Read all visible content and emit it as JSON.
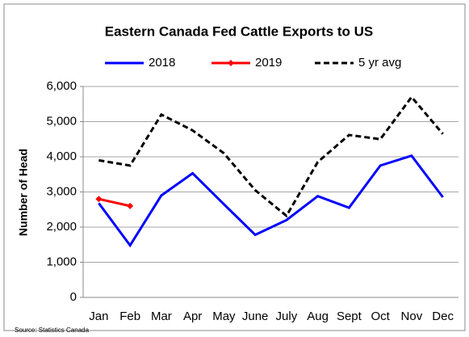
{
  "chart_data": {
    "type": "line",
    "title": "Eastern Canada Fed Cattle Exports to US",
    "y_label": "Number of Head",
    "source": "Source: Statistics Canada",
    "categories": [
      "Jan",
      "Feb",
      "Mar",
      "Apr",
      "May",
      "June",
      "July",
      "Aug",
      "Sept",
      "Oct",
      "Nov",
      "Dec"
    ],
    "series": [
      {
        "name": "2018",
        "color": "#0000ff",
        "values": [
          2680,
          1480,
          2900,
          3530,
          2650,
          1780,
          2200,
          2880,
          2550,
          3750,
          4030,
          2850
        ]
      },
      {
        "name": "2019",
        "color": "#ff0000",
        "marker": "diamond",
        "values": [
          2800,
          2600,
          null,
          null,
          null,
          null,
          null,
          null,
          null,
          null,
          null,
          null
        ]
      },
      {
        "name": "5 yr avg",
        "color": "#000000",
        "dash": true,
        "values": [
          3900,
          3750,
          5200,
          4750,
          4100,
          3050,
          2320,
          3850,
          4620,
          4500,
          5700,
          4650
        ]
      }
    ],
    "ylim": [
      0,
      6000
    ],
    "yticks": [
      0,
      {
        "value": 1000,
        "label": "1,000"
      },
      {
        "value": 2000,
        "label": "2,000"
      },
      {
        "value": 3000,
        "label": "3,000"
      },
      {
        "value": 4000,
        "label": "4,000"
      },
      {
        "value": 5000,
        "label": "5,000"
      },
      {
        "value": 6000,
        "label": "6,000"
      }
    ],
    "grid": true,
    "legend": "top"
  }
}
